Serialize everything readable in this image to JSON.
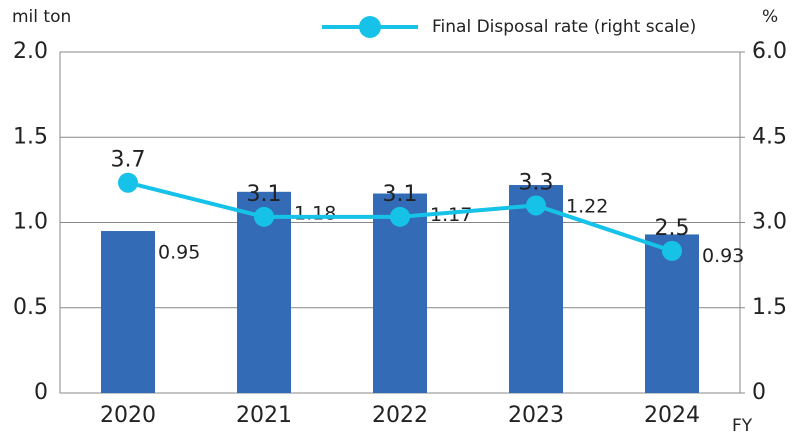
{
  "chart_data": {
    "type": "bar-line",
    "categories": [
      "2020",
      "2021",
      "2022",
      "2023",
      "2024"
    ],
    "series": [
      {
        "type": "bar",
        "color": "#336bb6",
        "values": [
          0.95,
          1.18,
          1.17,
          1.22,
          0.93
        ]
      },
      {
        "type": "line",
        "name": "Final Disposal rate (right scale)",
        "color": "#16c2e8",
        "axis": "y2",
        "values": [
          3.7,
          3.1,
          3.1,
          3.3,
          2.5
        ]
      }
    ],
    "ylabel": "mil ton",
    "y2label": "%",
    "xlabel": "FY",
    "ylim": [
      0,
      2
    ],
    "yticks": [
      0,
      0.5,
      {
        "value": 1,
        "label": "1.0"
      },
      1.5,
      {
        "value": 2,
        "label": "2.0"
      }
    ],
    "y2lim": [
      0,
      6
    ],
    "y2ticks": [
      0,
      1.5,
      {
        "value": 3,
        "label": "3.0"
      },
      4.5,
      {
        "value": 6,
        "label": "6.0"
      }
    ],
    "grid": true
  }
}
